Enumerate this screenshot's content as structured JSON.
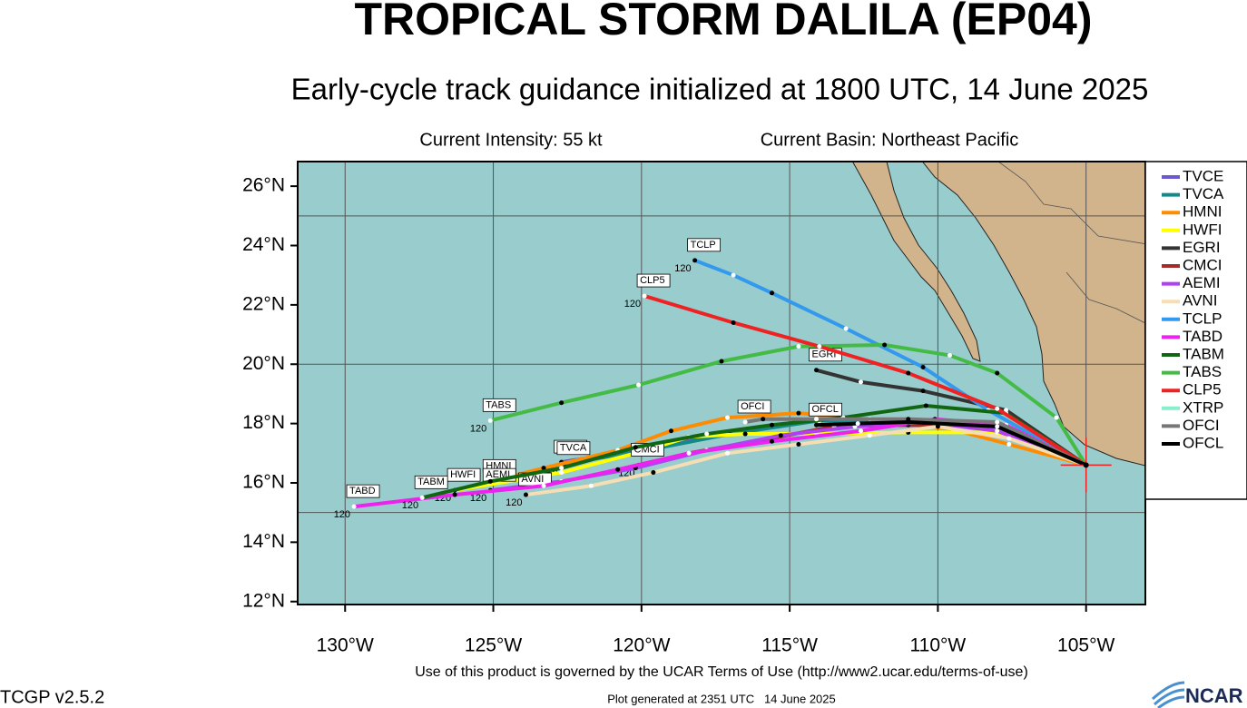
{
  "chart_data": {
    "type": "track",
    "title": "TROPICAL STORM DALILA (EP04)",
    "subtitle": "Early-cycle track guidance initialized at 1800 UTC, 14 June 2025",
    "intensity": "Current Intensity: 55 kt",
    "basin": "Current Basin: Northeast Pacific",
    "terms": "Use of this product is governed by the UCAR Terms of Use (http://www2.ucar.edu/terms-of-use)",
    "version": "TCGP v2.5.2",
    "generated": "Plot generated at 2351 UTC   14 June 2025",
    "logo": "NCAR",
    "xlim": [
      -131.6,
      -103.0
    ],
    "ylim": [
      11.9,
      26.83
    ],
    "xticks": [
      {
        "value": -130,
        "label": "130°W"
      },
      {
        "value": -125,
        "label": "125°W"
      },
      {
        "value": -120,
        "label": "120°W"
      },
      {
        "value": -115,
        "label": "115°W"
      },
      {
        "value": -110,
        "label": "110°W"
      },
      {
        "value": -105,
        "label": "105°W"
      }
    ],
    "yticks": [
      {
        "value": 12,
        "label": "12°N"
      },
      {
        "value": 14,
        "label": "14°N"
      },
      {
        "value": 16,
        "label": "16°N"
      },
      {
        "value": 18,
        "label": "18°N"
      },
      {
        "value": 20,
        "label": "20°N"
      },
      {
        "value": 22,
        "label": "22°N"
      },
      {
        "value": 24,
        "label": "24°N"
      },
      {
        "value": 26,
        "label": "26°N"
      }
    ],
    "lat_grid": [
      15,
      20,
      25
    ],
    "storm_position": [
      -105.0,
      16.6
    ],
    "series": [
      {
        "name": "TVCE",
        "color": "#6a5acd",
        "end_hour": "120",
        "x": [
          -105.0,
          -108.0,
          -111.0,
          -114.1,
          -117.1,
          -120.2,
          -122.7
        ],
        "y": [
          16.6,
          18.0,
          18.1,
          18.15,
          17.7,
          17.1,
          16.7
        ]
      },
      {
        "name": "TVCA",
        "color": "#138a8a",
        "x": [
          -105.0,
          -108.0,
          -111.0,
          -114.0,
          -117.0,
          -120.1,
          -122.6
        ],
        "y": [
          16.6,
          17.95,
          18.05,
          18.1,
          17.65,
          17.05,
          16.65
        ]
      },
      {
        "name": "HMNI",
        "color": "#ff8c00",
        "x": [
          -105.0,
          -107.6,
          -109.5,
          -112.3,
          -114.7,
          -117.1,
          -119.0,
          -120.8,
          -123.3,
          -125.1
        ],
        "y": [
          16.6,
          17.3,
          17.8,
          18.15,
          18.35,
          18.2,
          17.75,
          17.1,
          16.5,
          16.05
        ]
      },
      {
        "name": "HWFI",
        "color": "#ffff00",
        "end_hour": "120",
        "x": [
          -105.0,
          -108.0,
          -111.0,
          -114.1,
          -116.5,
          -118.4,
          -120.2,
          -122.7,
          -126.3
        ],
        "y": [
          16.6,
          17.7,
          17.7,
          17.65,
          17.65,
          17.55,
          17.0,
          16.35,
          15.75
        ]
      },
      {
        "name": "EGRI",
        "color": "#333333",
        "x": [
          -105.0,
          -107.7,
          -110.5,
          -112.6,
          -114.1
        ],
        "y": [
          16.6,
          18.45,
          19.1,
          19.4,
          19.8
        ]
      },
      {
        "name": "CMCI",
        "color": "#a52a2a",
        "end_hour": "120",
        "x": [
          -105.0,
          -108.0,
          -111.0,
          -113.5,
          -115.9,
          -118.4,
          -120.1
        ],
        "y": [
          16.6,
          17.9,
          17.95,
          17.9,
          17.45,
          17.0,
          16.6
        ]
      },
      {
        "name": "AEMI",
        "color": "#b040f0",
        "end_hour": "120",
        "x": [
          -105.0,
          -108.0,
          -110.4,
          -112.8,
          -115.3,
          -117.8,
          -120.2,
          -122.7,
          -125.1
        ],
        "y": [
          16.6,
          17.75,
          18.05,
          17.9,
          17.6,
          17.1,
          16.5,
          16.05,
          15.75
        ]
      },
      {
        "name": "AVNI",
        "color": "#f5deb3",
        "end_hour": "120",
        "x": [
          -105.0,
          -107.6,
          -110.0,
          -112.3,
          -114.7,
          -117.1,
          -119.6,
          -121.7,
          -123.9
        ],
        "y": [
          16.6,
          17.5,
          17.9,
          17.6,
          17.3,
          17.0,
          16.35,
          15.9,
          15.6
        ]
      },
      {
        "name": "TCLP",
        "color": "#3399ee",
        "end_hour": "120",
        "x": [
          -105.0,
          -108.3,
          -110.5,
          -113.1,
          -115.6,
          -116.9,
          -118.2
        ],
        "y": [
          16.6,
          18.45,
          19.9,
          21.2,
          22.4,
          23.0,
          23.5
        ]
      },
      {
        "name": "TABD",
        "color": "#ee22ee",
        "end_hour": "120",
        "x": [
          -105.0,
          -107.7,
          -110.1,
          -112.6,
          -115.6,
          -118.4,
          -120.8,
          -123.3,
          -126.3,
          -129.7
        ],
        "y": [
          16.6,
          17.95,
          18.15,
          17.75,
          17.4,
          17.0,
          16.45,
          15.9,
          15.6,
          15.2
        ]
      },
      {
        "name": "TABM",
        "color": "#116611",
        "end_hour": "120",
        "x": [
          -105.0,
          -107.7,
          -110.4,
          -113.2,
          -115.6,
          -117.8,
          -120.2,
          -122.7,
          -125.1,
          -127.4
        ],
        "y": [
          16.6,
          18.35,
          18.6,
          18.2,
          17.95,
          17.65,
          17.2,
          16.5,
          16.05,
          15.5
        ]
      },
      {
        "name": "TABS",
        "color": "#44bb44",
        "end_hour": "120",
        "x": [
          -105.0,
          -106.0,
          -108.0,
          -109.6,
          -111.8,
          -114.7,
          -117.3,
          -120.1,
          -122.7,
          -125.1
        ],
        "y": [
          16.6,
          18.2,
          19.7,
          20.3,
          20.65,
          20.6,
          20.1,
          19.3,
          18.7,
          18.1
        ]
      },
      {
        "name": "CLP5",
        "color": "#ee2222",
        "end_hour": "120",
        "x": [
          -105.0,
          -108.0,
          -111.0,
          -114.0,
          -116.9,
          -119.9
        ],
        "y": [
          16.6,
          18.5,
          19.7,
          20.6,
          21.4,
          22.3
        ]
      },
      {
        "name": "XTRP",
        "color": "#88eecc",
        "x": [
          -105.0,
          -107.1
        ],
        "y": [
          16.6,
          17.6
        ]
      },
      {
        "name": "OFCI",
        "color": "#777777",
        "x": [
          -105.0,
          -108.0,
          -111.0,
          -114.1,
          -115.9,
          -116.5
        ],
        "y": [
          16.6,
          18.05,
          18.15,
          18.15,
          18.15,
          18.05
        ]
      },
      {
        "name": "OFCL",
        "color": "#000000",
        "x": [
          -105.0,
          -108.0,
          -111.0,
          -112.7,
          -114.1
        ],
        "y": [
          16.6,
          17.9,
          18.05,
          18.0,
          17.95
        ]
      }
    ]
  }
}
